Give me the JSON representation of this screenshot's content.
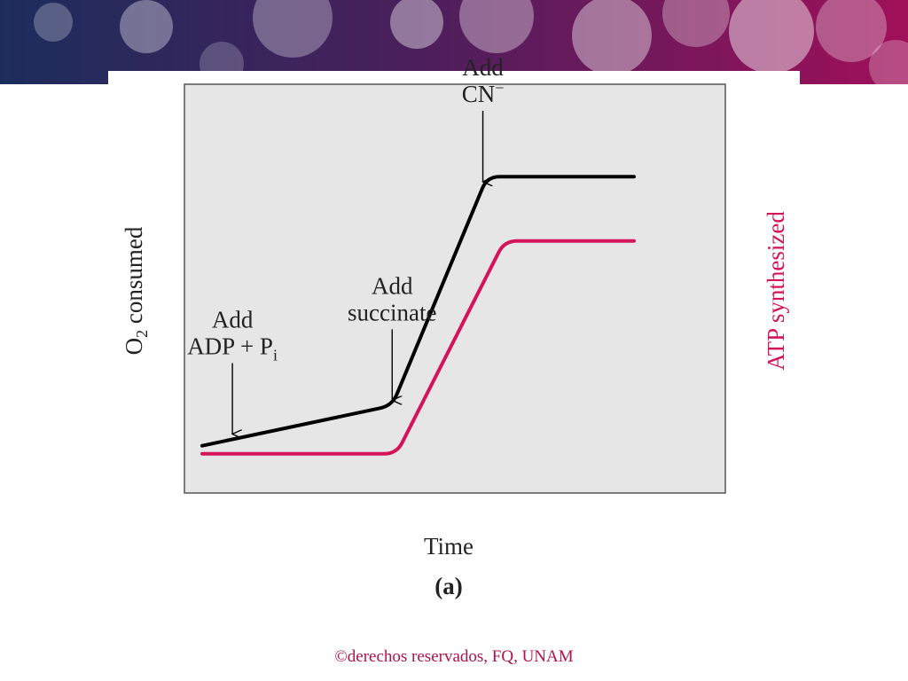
{
  "slide": {
    "footer": "©derechos reservados, FQ, UNAM"
  },
  "chart_data": {
    "type": "line",
    "panel_label": "(a)",
    "xlabel": "Time",
    "ylabel_left": {
      "main": "O",
      "sub": "2",
      "rest": " consumed"
    },
    "ylabel_right": "ATP synthesized",
    "grid": false,
    "x_ticks": "none",
    "y_ticks": "none",
    "colors": {
      "o2": "#000000",
      "atp": "#d4145a",
      "plot_bg": "#e6e6e6",
      "right_label": "#d4145a"
    },
    "series": [
      {
        "key": "o2",
        "points": [
          [
            0.0,
            0.1
          ],
          [
            0.44,
            0.2
          ],
          [
            0.66,
            0.77
          ],
          [
            1.0,
            0.77
          ]
        ]
      },
      {
        "key": "atp",
        "points": [
          [
            0.0,
            0.08
          ],
          [
            0.45,
            0.08
          ],
          [
            0.7,
            0.61
          ],
          [
            1.0,
            0.61
          ]
        ]
      }
    ],
    "annotations": [
      {
        "id": "adp",
        "x": 0.07,
        "line1": "Add",
        "line2": {
          "main": "ADP + P",
          "sub": "i"
        }
      },
      {
        "id": "succinate",
        "x": 0.44,
        "line1": "Add",
        "line2": {
          "main": "succinate",
          "sub": ""
        }
      },
      {
        "id": "cn",
        "x": 0.65,
        "line1": "Add",
        "line2": {
          "main": "CN",
          "sup": "−"
        }
      }
    ]
  }
}
